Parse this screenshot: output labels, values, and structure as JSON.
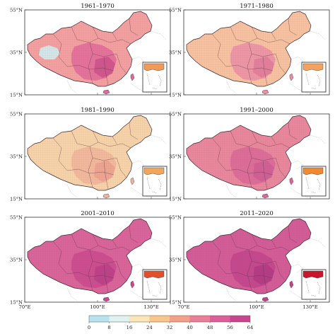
{
  "panels": [
    {
      "title": "1961–1970",
      "base": "#f3a0a0",
      "deep": "#e06a9a",
      "hot": "#c94f8a",
      "inset": "#f09a5a"
    },
    {
      "title": "1971–1980",
      "base": "#f7c2a0",
      "deep": "#eb8ea6",
      "hot": "#de7a98",
      "inset": "#f4a260"
    },
    {
      "title": "1981–1990",
      "base": "#f7d3a9",
      "deep": "#f1b49a",
      "hot": "#eaa08e",
      "inset": "#f3a55c"
    },
    {
      "title": "1991–2000",
      "base": "#e9879c",
      "deep": "#d96898",
      "hot": "#cd5c94",
      "inset": "#f0892f"
    },
    {
      "title": "2001–2010",
      "base": "#d96499",
      "deep": "#c9498e",
      "hot": "#b93f86",
      "inset": "#e24f2c"
    },
    {
      "title": "2011–2020",
      "base": "#d35c97",
      "deep": "#c1448b",
      "hot": "#b03a82",
      "inset": "#c8172c"
    }
  ],
  "lat_labels": [
    "55°N",
    "35°N",
    "15°N"
  ],
  "lon_labels": [
    "70°E",
    "100°E",
    "130°E"
  ],
  "colorbar": {
    "ticks": [
      "0",
      "8",
      "16",
      "24",
      "32",
      "40",
      "48",
      "56",
      "64"
    ],
    "colors": [
      "#b8e3ee",
      "#dff2ef",
      "#fbe5b6",
      "#f8c58b",
      "#f2a08a",
      "#ea7d97",
      "#dc5f9a",
      "#c8458f"
    ]
  }
}
